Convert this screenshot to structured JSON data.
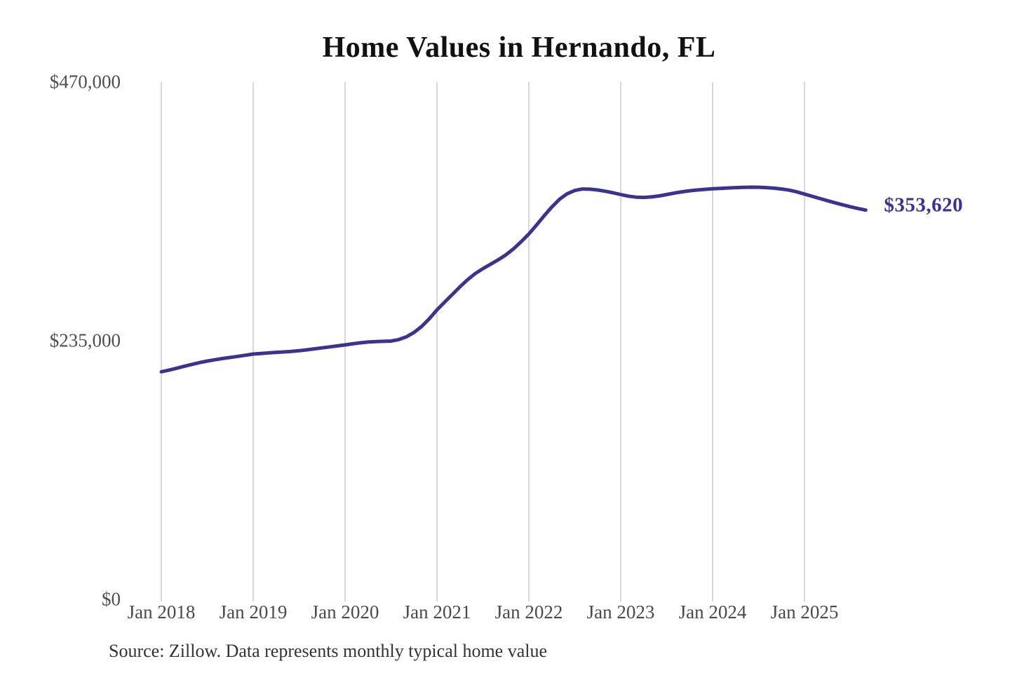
{
  "page": {
    "background_color": "#ffffff"
  },
  "chart": {
    "title": "Home Values in Hernando, FL",
    "source_note": "Source: Zillow. Data represents monthly typical home value",
    "line_color": "#3b3291",
    "grid_color": "#cccccc",
    "axis_text_color": "#4a4a4a",
    "title_color": "#111111",
    "value_label_color": "#3b3291"
  },
  "chart_data": {
    "type": "line",
    "title": "Home Values in Hernando, FL",
    "xlabel": "",
    "ylabel": "",
    "ylim": [
      0,
      470000
    ],
    "grid": "vertical-only",
    "legend": "none",
    "y_ticks": [
      {
        "value": 470000,
        "label": "$470,000"
      },
      {
        "value": 235000,
        "label": "$235,000"
      },
      {
        "value": 0,
        "label": "$0"
      }
    ],
    "x_tick_labels": [
      "Jan 2018",
      "Jan 2019",
      "Jan 2020",
      "Jan 2021",
      "Jan 2022",
      "Jan 2023",
      "Jan 2024",
      "Jan 2025"
    ],
    "series": [
      {
        "start_month": "2018-01",
        "end_month": "2025-09",
        "frequency": "monthly",
        "values": [
          206800,
          208300,
          210000,
          211800,
          213500,
          215100,
          216500,
          217700,
          218800,
          219800,
          220800,
          221800,
          222900,
          223400,
          223900,
          224400,
          224800,
          225300,
          225900,
          226700,
          227600,
          228500,
          229400,
          230300,
          231200,
          232200,
          233100,
          233800,
          234200,
          234400,
          234700,
          236000,
          238500,
          242500,
          248000,
          255000,
          263000,
          270000,
          277000,
          284000,
          290500,
          296000,
          300500,
          304500,
          308500,
          313000,
          318500,
          325000,
          332000,
          340000,
          348500,
          356500,
          363500,
          368500,
          371500,
          372800,
          372600,
          371900,
          370800,
          369400,
          367800,
          366300,
          365400,
          365200,
          365600,
          366500,
          367800,
          369100,
          370300,
          371200,
          371900,
          372500,
          373000,
          373400,
          373800,
          374100,
          374300,
          374500,
          374400,
          374100,
          373600,
          372800,
          371800,
          370200,
          368200,
          366200,
          364200,
          362200,
          360300,
          358400,
          356700,
          355100,
          353620
        ]
      }
    ],
    "last_point": {
      "month": "2025-09",
      "value": 353620,
      "label": "$353,620"
    }
  }
}
